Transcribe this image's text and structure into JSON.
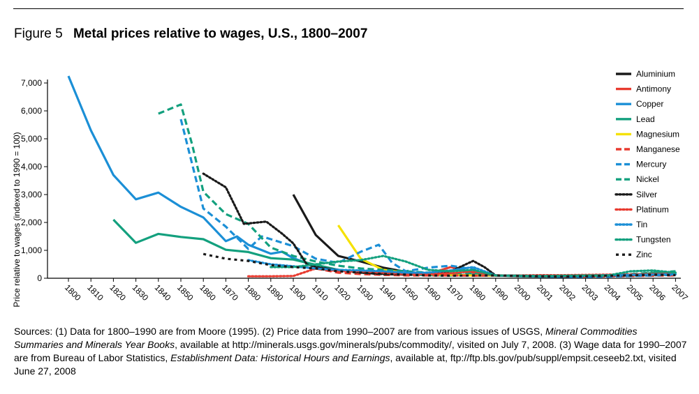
{
  "figure": {
    "label": "Figure 5",
    "title": "Metal prices relative to wages, U.S., 1800–2007"
  },
  "sources": {
    "line1_a": "Sources: (1) Data for 1800–1990 are from Moore (1995). (2) Price data from 1990–2007 are from various issues of USGS, ",
    "line1_b": "Mineral Commodities Summaries and Minerals Year Books",
    "line1_c": ", available at http://minerals.usgs.gov/minerals/pubs/commodity/, visited on July 7, 2008. (3) Wage data for 1990–2007 are from Bureau of Labor Statistics, ",
    "line1_d": "Establishment Data: Historical Hours and Earnings",
    "line1_e": ", available at, ftp://ftp.bls.gov/pub/suppl/empsit.ceseeb2.txt, visited June 27, 2008"
  },
  "chart_data": {
    "type": "line",
    "title": "Metal prices relative to wages, U.S., 1800–2007",
    "xlabel": "",
    "ylabel": "Price relative to wages (indexed to 1990 = 100)",
    "ylim": [
      0,
      7000
    ],
    "yticks": [
      0,
      1000,
      2000,
      3000,
      4000,
      5000,
      6000,
      7000
    ],
    "ytick_labels": [
      "0",
      "1,000",
      "2,000",
      "3,000",
      "4,000",
      "5,000",
      "6,000",
      "7,000"
    ],
    "x_categories": [
      "1800",
      "1810",
      "1820",
      "1830",
      "1840",
      "1850",
      "1860",
      "1870",
      "1880",
      "1890",
      "1900",
      "1910",
      "1920",
      "1930",
      "1940",
      "1950",
      "1960",
      "1970",
      "1980",
      "1990",
      "2000",
      "2001",
      "2002",
      "2003",
      "2004",
      "2005",
      "2006",
      "2007"
    ],
    "legend_position": "right",
    "grid": false,
    "series": [
      {
        "name": "Aluminium",
        "color": "#1a1a1a",
        "style": "solid",
        "points": [
          [
            10,
            3000
          ],
          [
            11,
            1550
          ],
          [
            12,
            800
          ],
          [
            13,
            600
          ],
          [
            14,
            380
          ],
          [
            15,
            230
          ],
          [
            16,
            150
          ],
          [
            17,
            130
          ],
          [
            18,
            100
          ],
          [
            19,
            100
          ],
          [
            20,
            90
          ],
          [
            21,
            80
          ],
          [
            22,
            80
          ],
          [
            23,
            90
          ],
          [
            24,
            100
          ],
          [
            25,
            110
          ],
          [
            26,
            120
          ],
          [
            27,
            130
          ]
        ]
      },
      {
        "name": "Antimony",
        "color": "#e83a2f",
        "style": "solid",
        "points": [
          [
            11,
            400
          ],
          [
            12,
            300
          ],
          [
            13,
            220
          ],
          [
            14,
            180
          ],
          [
            15,
            120
          ],
          [
            16,
            150
          ],
          [
            17,
            400
          ],
          [
            18,
            200
          ],
          [
            19,
            100
          ],
          [
            20,
            80
          ],
          [
            21,
            70
          ],
          [
            22,
            60
          ],
          [
            23,
            70
          ],
          [
            24,
            90
          ],
          [
            25,
            100
          ],
          [
            26,
            110
          ],
          [
            27,
            120
          ]
        ]
      },
      {
        "name": "Copper",
        "color": "#1b8fd6",
        "style": "solid",
        "points": [
          [
            0,
            7250
          ],
          [
            1,
            5300
          ],
          [
            2,
            3700
          ],
          [
            3,
            2830
          ],
          [
            4,
            3070
          ],
          [
            5,
            2560
          ],
          [
            6,
            2180
          ],
          [
            7,
            1330
          ],
          [
            7.5,
            1500
          ],
          [
            8,
            1200
          ],
          [
            9,
            880
          ],
          [
            9.5,
            950
          ],
          [
            10,
            720
          ],
          [
            11,
            430
          ],
          [
            12,
            300
          ],
          [
            13,
            230
          ],
          [
            14,
            200
          ],
          [
            15,
            150
          ],
          [
            16,
            150
          ],
          [
            17,
            110
          ],
          [
            18,
            130
          ],
          [
            19,
            100
          ],
          [
            20,
            80
          ],
          [
            21,
            70
          ],
          [
            22,
            60
          ],
          [
            23,
            70
          ],
          [
            24,
            110
          ],
          [
            25,
            120
          ],
          [
            26,
            180
          ],
          [
            27,
            200
          ]
        ]
      },
      {
        "name": "Lead",
        "color": "#13a07e",
        "style": "solid",
        "points": [
          [
            2,
            2100
          ],
          [
            3,
            1270
          ],
          [
            4,
            1590
          ],
          [
            5,
            1480
          ],
          [
            6,
            1400
          ],
          [
            7,
            1020
          ],
          [
            8,
            940
          ],
          [
            9,
            720
          ],
          [
            10,
            670
          ],
          [
            11,
            480
          ],
          [
            12,
            300
          ],
          [
            13,
            230
          ],
          [
            14,
            180
          ],
          [
            15,
            140
          ],
          [
            16,
            110
          ],
          [
            17,
            100
          ],
          [
            18,
            120
          ],
          [
            19,
            100
          ],
          [
            20,
            70
          ],
          [
            21,
            60
          ],
          [
            22,
            60
          ],
          [
            23,
            70
          ],
          [
            24,
            100
          ],
          [
            25,
            110
          ],
          [
            26,
            190
          ],
          [
            27,
            220
          ]
        ]
      },
      {
        "name": "Magnesium",
        "color": "#f5e100",
        "style": "solid",
        "points": [
          [
            12,
            1900
          ],
          [
            13,
            700
          ],
          [
            14,
            300
          ],
          [
            15,
            200
          ],
          [
            16,
            150
          ],
          [
            17,
            120
          ],
          [
            18,
            100
          ],
          [
            19,
            100
          ],
          [
            20,
            90
          ],
          [
            21,
            80
          ],
          [
            22,
            80
          ],
          [
            23,
            90
          ],
          [
            24,
            100
          ],
          [
            25,
            110
          ],
          [
            26,
            120
          ],
          [
            27,
            130
          ]
        ]
      },
      {
        "name": "Manganese",
        "color": "#e83a2f",
        "style": "dashed",
        "points": [
          [
            11,
            350
          ],
          [
            12,
            200
          ],
          [
            13,
            150
          ],
          [
            14,
            120
          ],
          [
            15,
            100
          ],
          [
            16,
            100
          ],
          [
            17,
            100
          ],
          [
            18,
            90
          ],
          [
            19,
            100
          ],
          [
            20,
            80
          ],
          [
            21,
            70
          ],
          [
            22,
            60
          ],
          [
            23,
            60
          ],
          [
            24,
            70
          ],
          [
            25,
            80
          ],
          [
            26,
            90
          ],
          [
            27,
            100
          ]
        ]
      },
      {
        "name": "Mercury",
        "color": "#1b8fd6",
        "style": "dashed",
        "points": [
          [
            5,
            5700
          ],
          [
            6,
            2500
          ],
          [
            7,
            1850
          ],
          [
            8,
            1050
          ],
          [
            8.6,
            1500
          ],
          [
            9,
            1400
          ],
          [
            10,
            1150
          ],
          [
            11,
            700
          ],
          [
            12,
            550
          ],
          [
            13,
            950
          ],
          [
            13.8,
            1200
          ],
          [
            14.4,
            550
          ],
          [
            15,
            250
          ],
          [
            16,
            380
          ],
          [
            17,
            450
          ],
          [
            18,
            320
          ],
          [
            19,
            100
          ],
          [
            20,
            80
          ],
          [
            21,
            60
          ],
          [
            22,
            50
          ],
          [
            23,
            50
          ],
          [
            24,
            60
          ],
          [
            25,
            80
          ],
          [
            26,
            100
          ],
          [
            27,
            120
          ]
        ]
      },
      {
        "name": "Nickel",
        "color": "#13a07e",
        "style": "dashed",
        "points": [
          [
            4,
            5900
          ],
          [
            5,
            6230
          ],
          [
            5.5,
            4800
          ],
          [
            6,
            3100
          ],
          [
            7,
            2300
          ],
          [
            8,
            1950
          ],
          [
            9,
            1100
          ],
          [
            10,
            800
          ],
          [
            11,
            600
          ],
          [
            12,
            450
          ],
          [
            13,
            350
          ],
          [
            14,
            300
          ],
          [
            15,
            250
          ],
          [
            16,
            200
          ],
          [
            17,
            180
          ],
          [
            18,
            200
          ],
          [
            19,
            100
          ],
          [
            20,
            90
          ],
          [
            21,
            80
          ],
          [
            22,
            80
          ],
          [
            23,
            90
          ],
          [
            24,
            100
          ],
          [
            25,
            150
          ],
          [
            26,
            200
          ],
          [
            27,
            250
          ]
        ]
      },
      {
        "name": "Silver",
        "color": "#1a1a1a",
        "style": "dotted",
        "points": [
          [
            6,
            3750
          ],
          [
            7,
            3260
          ],
          [
            7.8,
            1950
          ],
          [
            8.8,
            2030
          ],
          [
            9.5,
            1600
          ],
          [
            10,
            1250
          ],
          [
            10.6,
            500
          ],
          [
            11,
            400
          ],
          [
            12,
            300
          ],
          [
            13,
            200
          ],
          [
            14,
            150
          ],
          [
            15,
            150
          ],
          [
            16,
            180
          ],
          [
            17,
            250
          ],
          [
            18,
            620
          ],
          [
            18.5,
            400
          ],
          [
            19,
            100
          ],
          [
            20,
            90
          ],
          [
            21,
            80
          ],
          [
            22,
            80
          ],
          [
            23,
            90
          ],
          [
            24,
            100
          ],
          [
            25,
            110
          ],
          [
            26,
            130
          ],
          [
            27,
            150
          ]
        ]
      },
      {
        "name": "Platinum",
        "color": "#e83a2f",
        "style": "dotted",
        "points": [
          [
            8,
            70
          ],
          [
            9,
            70
          ],
          [
            10,
            80
          ],
          [
            11,
            350
          ],
          [
            12,
            250
          ],
          [
            13,
            250
          ],
          [
            14,
            200
          ],
          [
            15,
            150
          ],
          [
            16,
            150
          ],
          [
            17,
            180
          ],
          [
            18,
            250
          ],
          [
            19,
            100
          ],
          [
            20,
            100
          ],
          [
            21,
            110
          ],
          [
            22,
            110
          ],
          [
            23,
            120
          ],
          [
            24,
            130
          ],
          [
            25,
            140
          ],
          [
            26,
            150
          ],
          [
            27,
            160
          ]
        ]
      },
      {
        "name": "Tin",
        "color": "#1b8fd6",
        "style": "dotted",
        "points": [
          [
            8,
            650
          ],
          [
            9,
            500
          ],
          [
            10,
            430
          ],
          [
            11,
            350
          ],
          [
            12,
            300
          ],
          [
            13,
            280
          ],
          [
            14,
            250
          ],
          [
            15,
            200
          ],
          [
            16,
            200
          ],
          [
            17,
            280
          ],
          [
            18,
            400
          ],
          [
            19,
            100
          ],
          [
            20,
            90
          ],
          [
            21,
            80
          ],
          [
            22,
            80
          ],
          [
            23,
            90
          ],
          [
            24,
            110
          ],
          [
            25,
            120
          ],
          [
            26,
            130
          ],
          [
            27,
            140
          ]
        ]
      },
      {
        "name": "Tungsten",
        "color": "#13a07e",
        "style": "dotted",
        "points": [
          [
            9,
            400
          ],
          [
            10,
            400
          ],
          [
            11,
            500
          ],
          [
            12,
            600
          ],
          [
            13,
            650
          ],
          [
            14,
            800
          ],
          [
            15,
            600
          ],
          [
            16,
            300
          ],
          [
            17,
            250
          ],
          [
            18,
            300
          ],
          [
            19,
            100
          ],
          [
            20,
            90
          ],
          [
            21,
            80
          ],
          [
            22,
            90
          ],
          [
            23,
            100
          ],
          [
            24,
            100
          ],
          [
            25,
            250
          ],
          [
            26,
            280
          ],
          [
            27,
            200
          ]
        ]
      },
      {
        "name": "Zinc",
        "color": "#1a1a1a",
        "style": "dashed-bold",
        "points": [
          [
            6,
            870
          ],
          [
            7,
            700
          ],
          [
            8,
            620
          ],
          [
            9,
            470
          ],
          [
            10,
            400
          ],
          [
            11,
            350
          ],
          [
            12,
            250
          ],
          [
            13,
            200
          ],
          [
            14,
            150
          ],
          [
            15,
            130
          ],
          [
            16,
            100
          ],
          [
            17,
            90
          ],
          [
            18,
            100
          ],
          [
            19,
            100
          ],
          [
            20,
            80
          ],
          [
            21,
            70
          ],
          [
            22,
            60
          ],
          [
            23,
            70
          ],
          [
            24,
            90
          ],
          [
            25,
            100
          ],
          [
            26,
            130
          ],
          [
            27,
            110
          ]
        ]
      }
    ]
  }
}
